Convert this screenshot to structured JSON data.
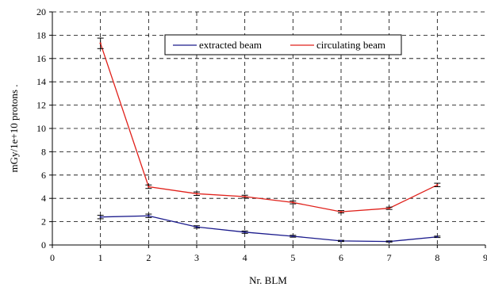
{
  "chart_data": {
    "type": "line",
    "title": "",
    "xlabel": "Nr. BLM",
    "ylabel": "mGy/1e+10 protons .",
    "xlim": [
      0,
      9
    ],
    "ylim": [
      0,
      20
    ],
    "x_ticks": [
      0,
      1,
      2,
      3,
      4,
      5,
      6,
      7,
      8,
      9
    ],
    "y_ticks": [
      0,
      2,
      4,
      6,
      8,
      10,
      12,
      14,
      16,
      18,
      20
    ],
    "grid": "dashed",
    "legend_position": "top-center",
    "series": [
      {
        "name": "extracted beam",
        "color": "#1a1a8c",
        "x": [
          1,
          2,
          3,
          4,
          5,
          6,
          7,
          8
        ],
        "y": [
          2.4,
          2.5,
          1.55,
          1.1,
          0.75,
          0.35,
          0.3,
          0.7
        ],
        "err": [
          0.15,
          0.15,
          0.1,
          0.1,
          0.08,
          0.05,
          0.05,
          0.06
        ]
      },
      {
        "name": "circulating beam",
        "color": "#e0201a",
        "x": [
          1,
          2,
          3,
          4,
          5,
          6,
          7,
          8
        ],
        "y": [
          17.3,
          5.0,
          4.4,
          4.15,
          3.65,
          2.85,
          3.15,
          5.15
        ],
        "err": [
          0.45,
          0.15,
          0.15,
          0.12,
          0.12,
          0.1,
          0.1,
          0.15
        ]
      }
    ]
  }
}
